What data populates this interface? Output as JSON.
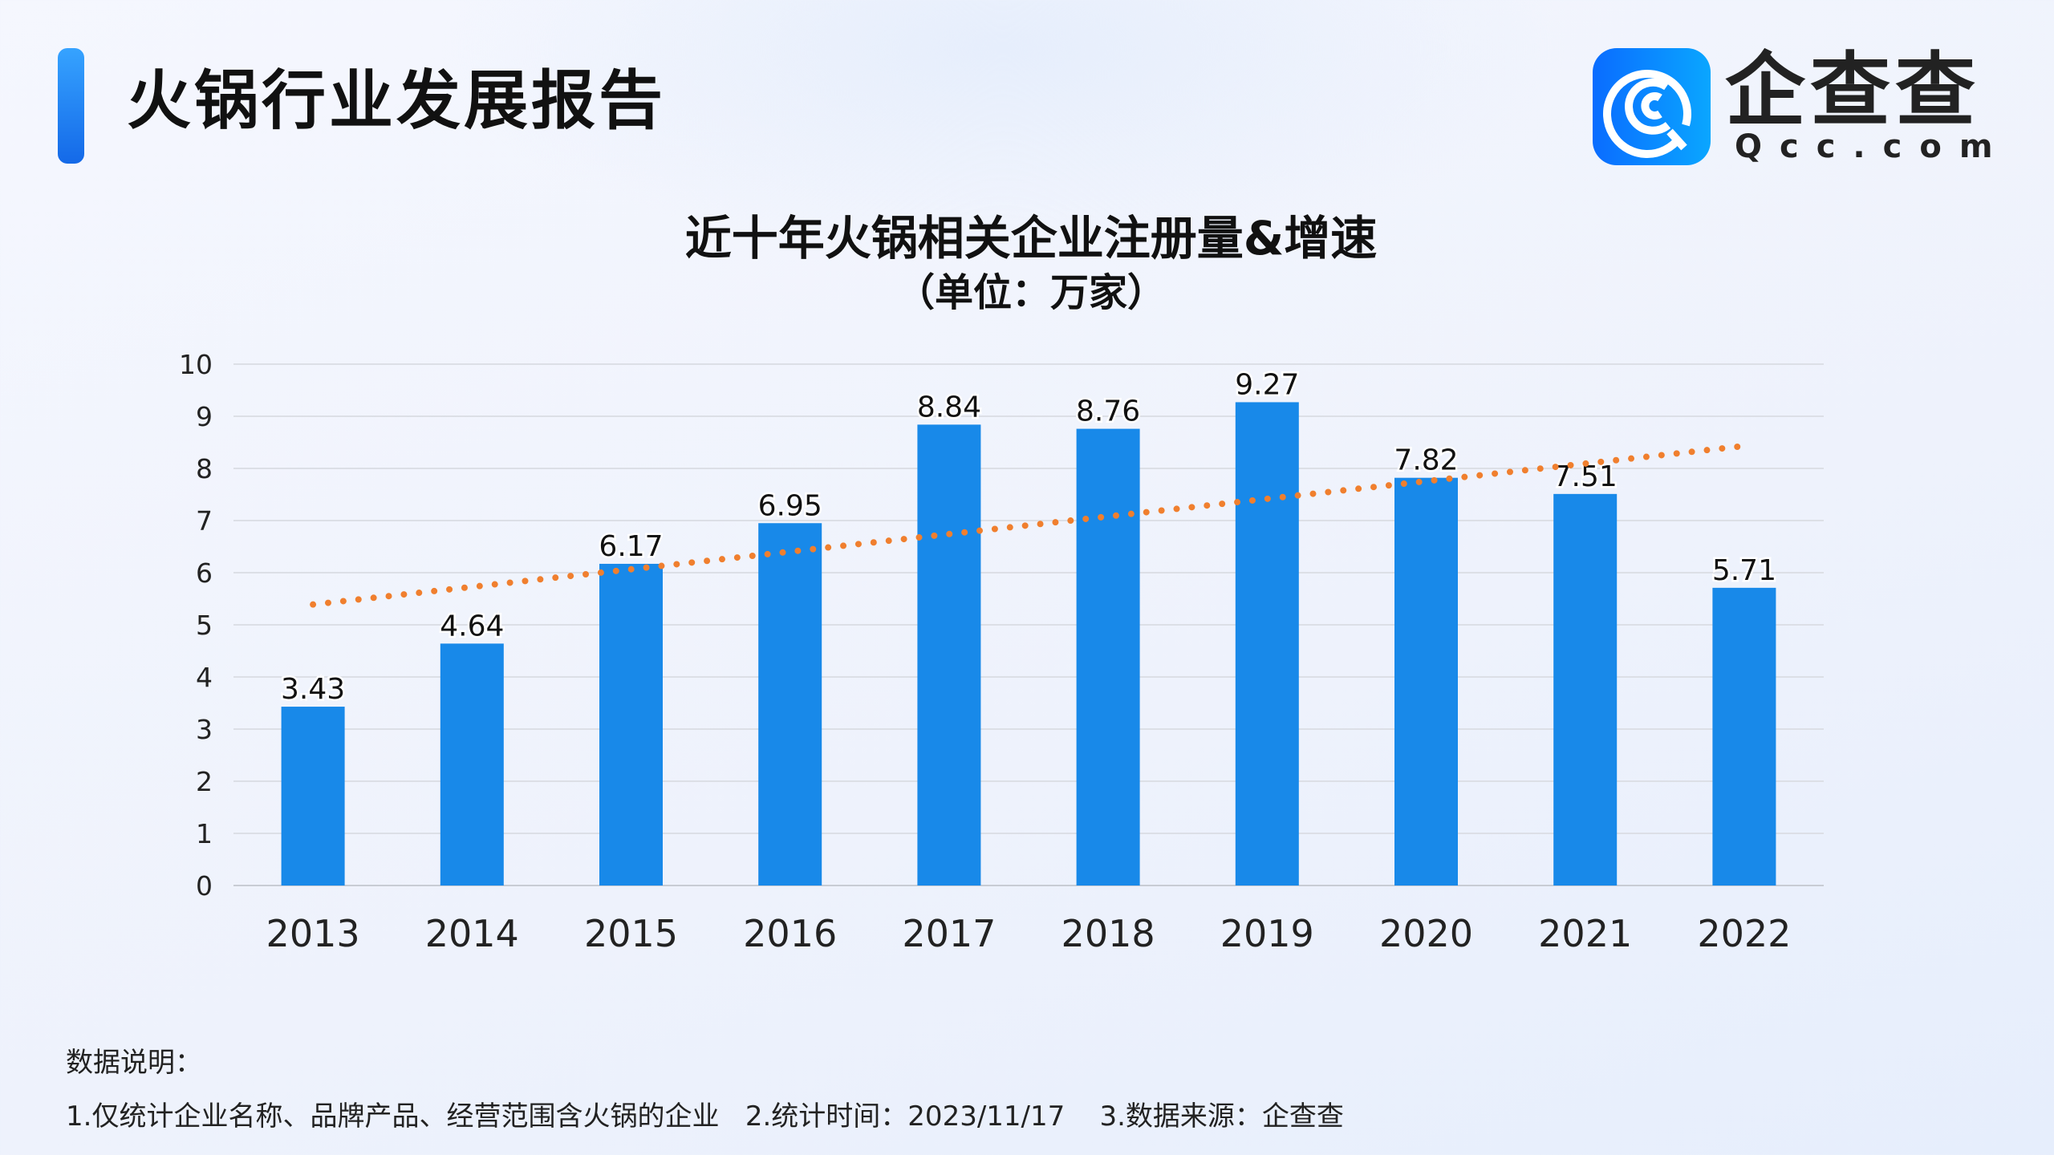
{
  "header": {
    "title": "火锅行业发展报告",
    "accent_color": "#1f86f0"
  },
  "logo": {
    "name": "企查查",
    "domain": "Qcc.com",
    "icon": "qcc-logo-icon"
  },
  "chart_data": {
    "type": "bar",
    "title": "近十年火锅相关企业注册量&增速",
    "subtitle": "（单位：万家）",
    "categories": [
      "2013",
      "2014",
      "2015",
      "2016",
      "2017",
      "2018",
      "2019",
      "2020",
      "2021",
      "2022"
    ],
    "values": [
      3.43,
      4.64,
      6.17,
      6.95,
      8.84,
      8.76,
      9.27,
      7.82,
      7.51,
      5.71
    ],
    "data_labels": [
      "3.43",
      "4.64",
      "6.17",
      "6.95",
      "8.84",
      "8.76",
      "9.27",
      "7.82",
      "7.51",
      "5.71"
    ],
    "ylim": [
      0,
      10
    ],
    "yticks": [
      "0",
      "1",
      "2",
      "3",
      "4",
      "5",
      "6",
      "7",
      "8",
      "9",
      "10"
    ],
    "grid": true,
    "trendline": "linear",
    "bar_color": "#1889e9",
    "trend_color": "#f07f2e"
  },
  "notes": {
    "heading": "数据说明：",
    "line": "1.仅统计企业名称、品牌产品、经营范围含火锅的企业   2.统计时间：2023/11/17    3.数据来源：企查查"
  }
}
